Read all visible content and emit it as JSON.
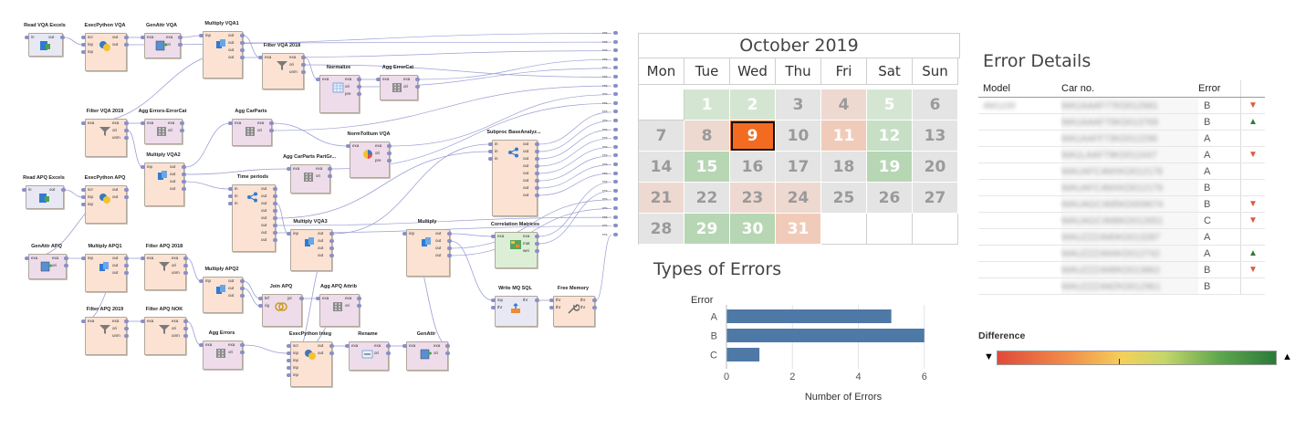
{
  "workflow": {
    "nodes": [
      {
        "id": "read_vqa",
        "title": "Read VQA Excels",
        "color": "#e8e8f4",
        "ports_in": [
          "in"
        ],
        "ports_out": [
          "out"
        ],
        "icon": "excel-read-icon"
      },
      {
        "id": "exec_vqa",
        "title": "ExecPython VQA",
        "color": "#fbe2d3",
        "ports_in": [
          "scr",
          "inp",
          "inp"
        ],
        "ports_out": [
          "out",
          "out"
        ],
        "icon": "python-icon"
      },
      {
        "id": "genattr_vqa",
        "title": "GenAttr VQA",
        "color": "#eedcea",
        "ports_in": [
          "exa"
        ],
        "ports_out": [
          "exa",
          "ori"
        ],
        "icon": "generate-attribute-icon"
      },
      {
        "id": "multiply_vqa1",
        "title": "Multiply VQA1",
        "color": "#fbe2d3",
        "ports_in": [
          "inp"
        ],
        "ports_out": [
          "out",
          "out",
          "out",
          "out"
        ],
        "icon": "multiply-icon"
      },
      {
        "id": "filter_vqa2018",
        "title": "Filter VQA 2018",
        "color": "#fbe2d3",
        "ports_in": [
          "exa"
        ],
        "ports_out": [
          "exa",
          "ori",
          "unm"
        ],
        "icon": "filter-icon"
      },
      {
        "id": "normalize",
        "title": "Normalize",
        "color": "#eedcea",
        "ports_in": [
          "exa"
        ],
        "ports_out": [
          "exa",
          "ori",
          "pre"
        ],
        "icon": "normalize-icon"
      },
      {
        "id": "agg_errorcat",
        "title": "Agg ErrorCat",
        "color": "#eedcea",
        "ports_in": [
          "exa"
        ],
        "ports_out": [
          "exa",
          "ori"
        ],
        "icon": "aggregate-icon"
      },
      {
        "id": "filter_vqa2019",
        "title": "Filter VQA 2019",
        "color": "#fbe2d3",
        "ports_in": [
          "exa"
        ],
        "ports_out": [
          "exa",
          "ori",
          "unm"
        ],
        "icon": "filter-icon"
      },
      {
        "id": "agg_errors_errorcat",
        "title": "Agg Errors-ErrorCat",
        "color": "#eedcea",
        "ports_in": [
          "exa"
        ],
        "ports_out": [
          "exa",
          "ori"
        ],
        "icon": "aggregate-icon"
      },
      {
        "id": "agg_carparts",
        "title": "Agg CarParts",
        "color": "#eedcea",
        "ports_in": [
          "exa"
        ],
        "ports_out": [
          "exa",
          "ori"
        ],
        "icon": "aggregate-icon"
      },
      {
        "id": "normtollium",
        "title": "NormTollium VQA",
        "color": "#eedcea",
        "ports_in": [
          "exa"
        ],
        "ports_out": [
          "exa",
          "ori",
          "pre"
        ],
        "icon": "chart-icon"
      },
      {
        "id": "multiply_vqa2",
        "title": "Multiply VQA2",
        "color": "#fbe2d3",
        "ports_in": [
          "inp"
        ],
        "ports_out": [
          "out",
          "out",
          "out",
          "out"
        ],
        "icon": "multiply-icon"
      },
      {
        "id": "agg_carparts_partgr",
        "title": "Agg CarParts PartGr...",
        "color": "#eedcea",
        "ports_in": [
          "exa"
        ],
        "ports_out": [
          "exa",
          "ori"
        ],
        "icon": "aggregate-icon"
      },
      {
        "id": "subproc",
        "title": "Subproc BaseAnalyz...",
        "color": "#fbe2d3",
        "ports_in": [
          "in",
          "in",
          "in"
        ],
        "ports_out": [
          "out",
          "out",
          "out",
          "out",
          "out",
          "out",
          "out",
          "out"
        ],
        "icon": "subprocess-icon"
      },
      {
        "id": "read_apq",
        "title": "Read APQ Excels",
        "color": "#e8e8f4",
        "ports_in": [
          "in"
        ],
        "ports_out": [
          "out"
        ],
        "icon": "excel-read-icon"
      },
      {
        "id": "exec_apq",
        "title": "ExecPython APQ",
        "color": "#fbe2d3",
        "ports_in": [
          "scr",
          "inp",
          "inp"
        ],
        "ports_out": [
          "out",
          "out"
        ],
        "icon": "python-icon"
      },
      {
        "id": "time_periods",
        "title": "Time periods",
        "color": "#fbe2d3",
        "ports_in": [
          "in",
          "in",
          "in"
        ],
        "ports_out": [
          "out",
          "out",
          "out",
          "out",
          "out",
          "out",
          "out",
          "out"
        ],
        "icon": "subprocess-icon"
      },
      {
        "id": "correlation",
        "title": "Correlation Matrices",
        "color": "#dcefd6",
        "ports_in": [
          "exa"
        ],
        "ports_out": [
          "exa",
          "mat",
          "wei"
        ],
        "icon": "matrix-icon"
      },
      {
        "id": "genattr_apq",
        "title": "GenAttr APQ",
        "color": "#eedcea",
        "ports_in": [
          "exa"
        ],
        "ports_out": [
          "exa",
          "ori"
        ],
        "icon": "generate-attribute-icon"
      },
      {
        "id": "multiply_apq1",
        "title": "Multiply APQ1",
        "color": "#fbe2d3",
        "ports_in": [
          "inp"
        ],
        "ports_out": [
          "out",
          "out",
          "out"
        ],
        "icon": "multiply-icon"
      },
      {
        "id": "filter_apq2018",
        "title": "Filter APQ 2018",
        "color": "#fbe2d3",
        "ports_in": [
          "exa"
        ],
        "ports_out": [
          "exa",
          "ori",
          "unm"
        ],
        "icon": "filter-icon"
      },
      {
        "id": "multiply_vqa3",
        "title": "Multiply VQA3",
        "color": "#fbe2d3",
        "ports_in": [
          "inp"
        ],
        "ports_out": [
          "out",
          "out",
          "out",
          "out"
        ],
        "icon": "multiply-icon"
      },
      {
        "id": "multiply",
        "title": "Multiply",
        "color": "#fbe2d3",
        "ports_in": [
          "inp"
        ],
        "ports_out": [
          "out",
          "out",
          "out",
          "out"
        ],
        "icon": "multiply-icon"
      },
      {
        "id": "multiply_apq2",
        "title": "Multiply APQ2",
        "color": "#fbe2d3",
        "ports_in": [
          "inp"
        ],
        "ports_out": [
          "out",
          "out",
          "out"
        ],
        "icon": "multiply-icon"
      },
      {
        "id": "join_apq",
        "title": "Join APQ",
        "color": "#eedcea",
        "ports_in": [
          "lef",
          "rig"
        ],
        "ports_out": [
          "joi"
        ],
        "icon": "join-icon"
      },
      {
        "id": "agg_apq_attrib",
        "title": "Agg APQ Attrib",
        "color": "#eedcea",
        "ports_in": [
          "exa"
        ],
        "ports_out": [
          "exa",
          "ori"
        ],
        "icon": "aggregate-icon"
      },
      {
        "id": "write_mq",
        "title": "Write MQ SQL",
        "color": "#e8e8f4",
        "ports_in": [
          "inp",
          "thr"
        ],
        "ports_out": [
          "thr"
        ],
        "icon": "database-write-icon"
      },
      {
        "id": "free_memory",
        "title": "Free Memory",
        "color": "#fbe2d3",
        "ports_in": [
          "thr",
          "thr"
        ],
        "ports_out": [
          "thr",
          "thr"
        ],
        "icon": "wrench-icon"
      },
      {
        "id": "filter_apq2019",
        "title": "Filter APQ 2019",
        "color": "#fbe2d3",
        "ports_in": [
          "exa"
        ],
        "ports_out": [
          "exa",
          "ori",
          "unm"
        ],
        "icon": "filter-icon"
      },
      {
        "id": "filter_apq_nok",
        "title": "Filter APQ NOK",
        "color": "#fbe2d3",
        "ports_in": [
          "exa"
        ],
        "ports_out": [
          "exa",
          "ori",
          "unm"
        ],
        "icon": "filter-icon"
      },
      {
        "id": "agg_errors",
        "title": "Agg Errors",
        "color": "#eedcea",
        "ports_in": [
          "exa"
        ],
        "ports_out": [
          "exa",
          "ori"
        ],
        "icon": "aggregate-icon"
      },
      {
        "id": "exec_integ",
        "title": "ExecPython Integ",
        "color": "#fbe2d3",
        "ports_in": [
          "scr",
          "inp",
          "inp",
          "inp",
          "inp"
        ],
        "ports_out": [
          "out",
          "out"
        ],
        "icon": "python-icon"
      },
      {
        "id": "rename",
        "title": "Rename",
        "color": "#eedcea",
        "ports_in": [
          "exa"
        ],
        "ports_out": [
          "exa",
          "ori"
        ],
        "icon": "rename-icon"
      },
      {
        "id": "genattr",
        "title": "GenAttr",
        "color": "#eedcea",
        "ports_in": [
          "exa"
        ],
        "ports_out": [
          "exa",
          "ori"
        ],
        "icon": "generate-attribute-icon"
      }
    ],
    "result_label": "res",
    "result_count": 24
  },
  "calendar": {
    "title": "October 2019",
    "weekdays": [
      "Mon",
      "Tue",
      "Wed",
      "Thu",
      "Fri",
      "Sat",
      "Sun"
    ],
    "leading_blanks": 1,
    "days": [
      {
        "d": "1",
        "bg": "#d4e6d2"
      },
      {
        "d": "2",
        "bg": "#d4e6d2"
      },
      {
        "d": "3",
        "bg": "#e4e4e4"
      },
      {
        "d": "4",
        "bg": "#eed9d0"
      },
      {
        "d": "5",
        "bg": "#d4e6d2"
      },
      {
        "d": "6",
        "bg": "#e4e4e4"
      },
      {
        "d": "7",
        "bg": "#e4e4e4"
      },
      {
        "d": "8",
        "bg": "#eed9d0"
      },
      {
        "d": "9",
        "bg": "#f26b21",
        "selected": true
      },
      {
        "d": "10",
        "bg": "#e4e4e4"
      },
      {
        "d": "11",
        "bg": "#f1cbb9"
      },
      {
        "d": "12",
        "bg": "#c7dfc5"
      },
      {
        "d": "13",
        "bg": "#e4e4e4"
      },
      {
        "d": "14",
        "bg": "#e4e4e4"
      },
      {
        "d": "15",
        "bg": "#b7d6b4"
      },
      {
        "d": "16",
        "bg": "#e4e4e4"
      },
      {
        "d": "17",
        "bg": "#e4e4e4"
      },
      {
        "d": "18",
        "bg": "#e4e4e4"
      },
      {
        "d": "19",
        "bg": "#b7d6b4"
      },
      {
        "d": "20",
        "bg": "#e4e4e4"
      },
      {
        "d": "21",
        "bg": "#eed9d0"
      },
      {
        "d": "22",
        "bg": "#e4e4e4"
      },
      {
        "d": "23",
        "bg": "#eed9d0"
      },
      {
        "d": "24",
        "bg": "#eed9d0"
      },
      {
        "d": "25",
        "bg": "#e4e4e4"
      },
      {
        "d": "26",
        "bg": "#e4e4e4"
      },
      {
        "d": "27",
        "bg": "#e4e4e4"
      },
      {
        "d": "28",
        "bg": "#e4e4e4"
      },
      {
        "d": "29",
        "bg": "#b7d6b4"
      },
      {
        "d": "30",
        "bg": "#b7d6b4"
      },
      {
        "d": "31",
        "bg": "#f1cbb9"
      }
    ],
    "selected_text_color": "#ffffff",
    "day_text_color": "#9a9a9a"
  },
  "types_chart": {
    "title": "Types of Errors",
    "chart_data": {
      "type": "bar",
      "orientation": "horizontal",
      "categories": [
        "A",
        "B",
        "C"
      ],
      "values": [
        5,
        6,
        1
      ],
      "category_header": "Error",
      "xlabel": "Number of Errors",
      "xlim": [
        0,
        6.2
      ],
      "xticks": [
        0,
        2,
        4,
        6
      ],
      "color": "#4e79a7",
      "grid": true
    }
  },
  "details": {
    "title": "Error Details",
    "headers": {
      "model": "Model",
      "car": "Car no.",
      "error": "Error"
    },
    "rows": [
      {
        "model": "4M1100",
        "car": "WA1AAAF77KD012681",
        "error": "B",
        "trend": "down"
      },
      {
        "model": "",
        "car": "WA1AAAF70KD013769",
        "error": "B",
        "trend": "up"
      },
      {
        "model": "",
        "car": "WA1AAFF73KD012296",
        "error": "A",
        "trend": ""
      },
      {
        "model": "",
        "car": "WA1LAAF79KD012447",
        "error": "A",
        "trend": "down"
      },
      {
        "model": "",
        "car": "WAUAFC4MXKD012178",
        "error": "A",
        "trend": ""
      },
      {
        "model": "",
        "car": "WAUAFC4MXKD012179",
        "error": "B",
        "trend": ""
      },
      {
        "model": "",
        "car": "WAUAGC4M5KD009674",
        "error": "B",
        "trend": "down"
      },
      {
        "model": "",
        "car": "WAUAGC4M8KD012651",
        "error": "C",
        "trend": "down"
      },
      {
        "model": "",
        "car": "WAUZZZ4M0KD013287",
        "error": "A",
        "trend": ""
      },
      {
        "model": "",
        "car": "WAUZZZ4M4KD012742",
        "error": "A",
        "trend": "up"
      },
      {
        "model": "",
        "car": "WAUZZZ4M8KD013862",
        "error": "B",
        "trend": "down"
      },
      {
        "model": "",
        "car": "WAUZZZ4MZKD012961",
        "error": "B",
        "trend": ""
      }
    ],
    "up_symbol": "▲",
    "down_symbol": "▼"
  },
  "legend": {
    "title": "Difference",
    "left_symbol": "▼",
    "right_symbol": "▲"
  }
}
